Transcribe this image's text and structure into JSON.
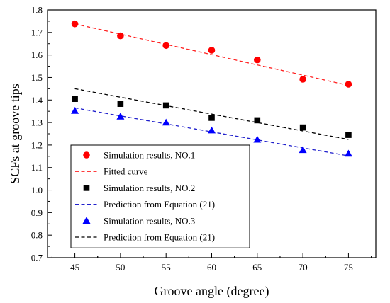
{
  "chart_data": {
    "type": "scatter",
    "xlabel": "Groove angle (degree)",
    "ylabel": "SCFs at groove tips",
    "xlim": [
      42,
      78
    ],
    "ylim": [
      0.7,
      1.8
    ],
    "x_ticks": [
      "45",
      "50",
      "55",
      "60",
      "65",
      "70",
      "75"
    ],
    "y_ticks": [
      "0.7",
      "0.8",
      "0.9",
      "1.0",
      "1.1",
      "1.2",
      "1.3",
      "1.4",
      "1.5",
      "1.6",
      "1.7",
      "1.8"
    ],
    "grid": false,
    "legend_position": "bottom-left",
    "x": [
      45,
      50,
      55,
      60,
      65,
      70,
      75
    ],
    "series": [
      {
        "name": "Simulation results, NO.1",
        "kind": "markers",
        "marker": "circle",
        "color": "#ff0000",
        "values": [
          1.738,
          1.685,
          1.642,
          1.621,
          1.578,
          1.492,
          1.47
        ]
      },
      {
        "name": "Fitted curve",
        "kind": "dashed-line",
        "color": "#ff2020",
        "x": [
          45,
          75
        ],
        "values": [
          1.738,
          1.465
        ]
      },
      {
        "name": "Simulation results, NO.2",
        "kind": "markers",
        "marker": "square",
        "color": "#000000",
        "values": [
          1.405,
          1.383,
          1.376,
          1.321,
          1.31,
          1.278,
          1.245
        ]
      },
      {
        "name": "Prediction from Equation (21)",
        "kind": "dashed-line",
        "color": "#1f1fcc",
        "x": [
          45,
          75
        ],
        "values": [
          1.365,
          1.152
        ]
      },
      {
        "name": "Simulation results, NO.3",
        "kind": "markers",
        "marker": "triangle",
        "color": "#0000ff",
        "values": [
          1.352,
          1.327,
          1.3,
          1.265,
          1.224,
          1.178,
          1.162
        ]
      },
      {
        "name": "Prediction from Equation (21)",
        "kind": "dashed-line",
        "color": "#000000",
        "x": [
          45,
          75
        ],
        "values": [
          1.45,
          1.225
        ]
      }
    ]
  }
}
